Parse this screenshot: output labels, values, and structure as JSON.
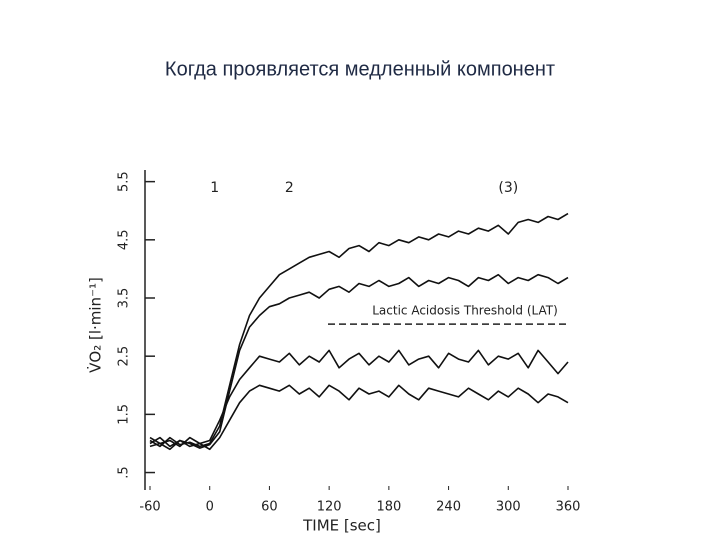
{
  "chart_data": {
    "type": "line",
    "title": "Когда проявляется медленный компонент",
    "x_label": "TIME [sec]",
    "y_label": "V̇O₂ [l·min⁻¹]",
    "x": [
      -60,
      -50,
      -40,
      -30,
      -20,
      -10,
      0,
      10,
      20,
      30,
      40,
      50,
      60,
      70,
      80,
      90,
      100,
      110,
      120,
      130,
      140,
      150,
      160,
      170,
      180,
      190,
      200,
      210,
      220,
      230,
      240,
      250,
      260,
      270,
      280,
      290,
      300,
      310,
      320,
      330,
      340,
      350,
      360
    ],
    "series": [
      {
        "color": "#111111",
        "values": [
          1.05,
          0.95,
          1.1,
          0.98,
          1.02,
          0.95,
          1.0,
          1.3,
          2.0,
          2.7,
          3.2,
          3.5,
          3.7,
          3.9,
          4.0,
          4.1,
          4.2,
          4.25,
          4.3,
          4.2,
          4.35,
          4.4,
          4.3,
          4.45,
          4.4,
          4.5,
          4.45,
          4.55,
          4.5,
          4.6,
          4.55,
          4.65,
          4.6,
          4.7,
          4.65,
          4.75,
          4.6,
          4.8,
          4.85,
          4.8,
          4.9,
          4.85,
          4.95
        ]
      },
      {
        "color": "#111111",
        "values": [
          1.0,
          1.1,
          0.95,
          1.05,
          1.0,
          0.92,
          0.98,
          1.2,
          1.9,
          2.6,
          3.0,
          3.2,
          3.35,
          3.4,
          3.5,
          3.55,
          3.6,
          3.5,
          3.65,
          3.7,
          3.6,
          3.75,
          3.7,
          3.8,
          3.7,
          3.75,
          3.85,
          3.7,
          3.8,
          3.75,
          3.85,
          3.8,
          3.7,
          3.85,
          3.8,
          3.9,
          3.75,
          3.85,
          3.8,
          3.9,
          3.85,
          3.75,
          3.85
        ]
      },
      {
        "color": "#111111",
        "values": [
          1.1,
          1.0,
          1.05,
          0.95,
          1.1,
          1.0,
          1.05,
          1.4,
          1.8,
          2.1,
          2.3,
          2.5,
          2.45,
          2.4,
          2.55,
          2.35,
          2.5,
          2.4,
          2.6,
          2.3,
          2.45,
          2.55,
          2.35,
          2.5,
          2.4,
          2.6,
          2.35,
          2.45,
          2.5,
          2.3,
          2.55,
          2.45,
          2.4,
          2.6,
          2.35,
          2.5,
          2.45,
          2.55,
          2.3,
          2.6,
          2.4,
          2.2,
          2.4
        ]
      },
      {
        "color": "#111111",
        "values": [
          0.95,
          1.0,
          0.9,
          1.05,
          0.95,
          1.0,
          0.9,
          1.1,
          1.4,
          1.7,
          1.9,
          2.0,
          1.95,
          1.9,
          2.0,
          1.85,
          1.95,
          1.8,
          2.0,
          1.9,
          1.75,
          1.95,
          1.85,
          1.9,
          1.8,
          2.0,
          1.85,
          1.75,
          1.95,
          1.9,
          1.85,
          1.8,
          1.95,
          1.85,
          1.75,
          1.9,
          1.8,
          1.95,
          1.85,
          1.7,
          1.85,
          1.8,
          1.7
        ]
      }
    ],
    "xlim": [
      -60,
      360
    ],
    "xticks": [
      -60,
      0,
      60,
      120,
      180,
      240,
      300,
      360
    ],
    "ylim": [
      0.2,
      5.7
    ],
    "yticks": [
      {
        "value": 0.5,
        "label": ".5"
      },
      1.5,
      2.5,
      3.5,
      4.5,
      5.5
    ],
    "threshold": {
      "value": 3.05,
      "label": "Lactic Acidosis Threshold (LAT)"
    },
    "curve_labels": [
      {
        "text": "1",
        "x": 5
      },
      {
        "text": "2",
        "x": 80
      },
      {
        "text": "(3)",
        "x": 300
      }
    ]
  }
}
